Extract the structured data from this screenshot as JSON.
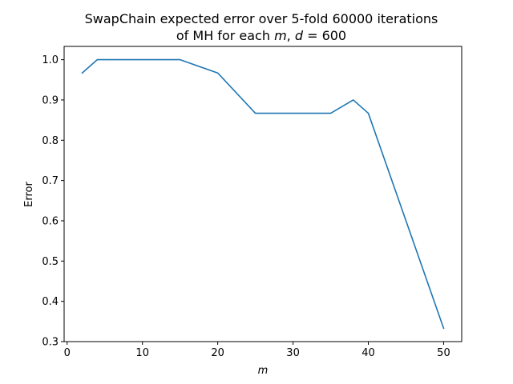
{
  "chart_data": {
    "type": "line",
    "title_line1": "SwapChain expected error over 5-fold 60000 iterations",
    "title_line2_prefix": "of MH for each ",
    "title_line2_m": "m",
    "title_line2_mid": ", ",
    "title_line2_d": "d",
    "title_line2_suffix": " = 600",
    "xlabel": "m",
    "ylabel": "Error",
    "xlim": [
      -0.4,
      52.4
    ],
    "ylim": [
      0.3,
      1.033
    ],
    "xticks": [
      0,
      10,
      20,
      30,
      40,
      50
    ],
    "yticks": [
      0.3,
      0.4,
      0.5,
      0.6,
      0.7,
      0.8,
      0.9,
      1.0
    ],
    "ytick_labels": [
      "0.3",
      "0.4",
      "0.5",
      "0.6",
      "0.7",
      "0.8",
      "0.9",
      "1.0"
    ],
    "grid": false,
    "series": [
      {
        "color": "#1f77b4",
        "x": [
          2,
          4,
          15,
          20,
          25,
          35,
          38,
          40,
          50
        ],
        "y": [
          0.967,
          1.0,
          1.0,
          0.967,
          0.867,
          0.867,
          0.9,
          0.867,
          0.333
        ]
      }
    ]
  }
}
